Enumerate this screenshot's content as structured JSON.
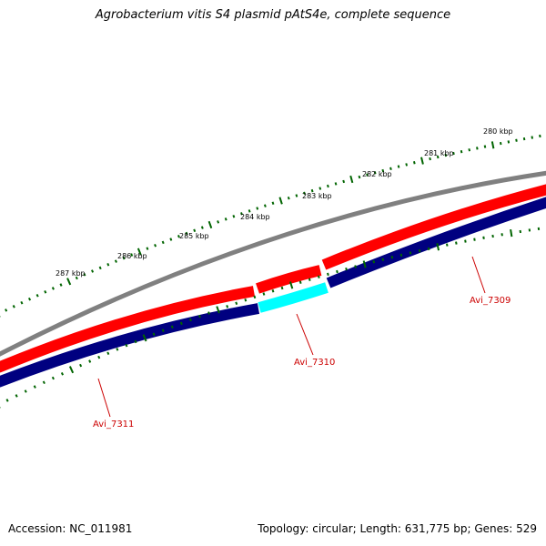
{
  "title": "Agrobacterium vitis S4 plasmid pAtS4e, complete sequence",
  "footer": {
    "accession": "Accession: NC_011981",
    "summary": "Topology: circular; Length: 631,775 bp; Genes: 529"
  },
  "scale_labels": [
    "280 kbp",
    "281 kbp",
    "282 kbp",
    "283 kbp",
    "284 kbp",
    "285 kbp",
    "286 kbp",
    "287 kbp"
  ],
  "genes": [
    {
      "label": "Avi_7309",
      "strand": "forward"
    },
    {
      "label": "Avi_7310",
      "strand": "reverse"
    },
    {
      "label": "Avi_7311",
      "strand": "reverse"
    }
  ],
  "colors": {
    "backbone": "#808080",
    "forward_cds": "#ff0000",
    "reverse_cds": "#000080",
    "highlight_cds": "#00ffff",
    "tick": "#006400",
    "gene_label": "#cc0000"
  }
}
